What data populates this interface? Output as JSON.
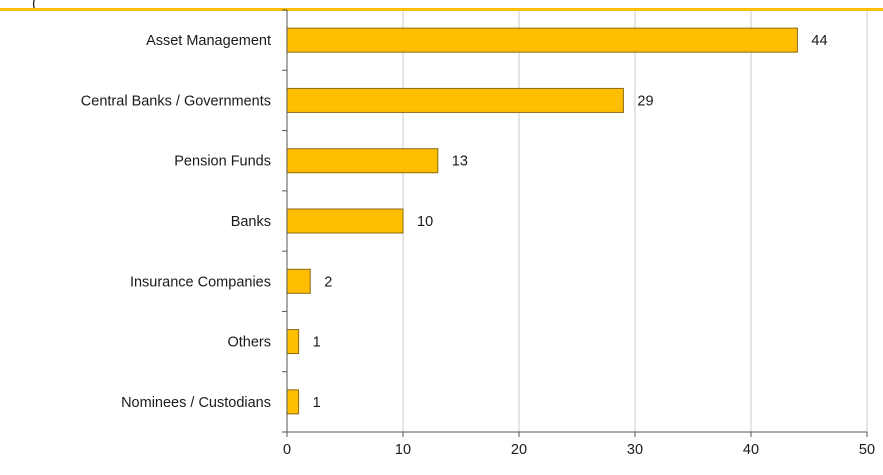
{
  "chart_data": {
    "type": "bar",
    "orientation": "horizontal",
    "title_fragment": "(",
    "categories": [
      "Asset Management",
      "Central Banks / Governments",
      "Pension Funds",
      "Banks",
      "Insurance Companies",
      "Others",
      "Nominees / Custodians"
    ],
    "values": [
      44,
      29,
      13,
      10,
      2,
      1,
      1
    ],
    "data_labels": [
      "44",
      "29",
      "13",
      "10",
      "2",
      "1",
      "1"
    ],
    "x_ticks": [
      "0",
      "10",
      "20",
      "30",
      "40",
      "50"
    ],
    "xlim": [
      0,
      50
    ],
    "grid": "vertical",
    "legend": "none",
    "colors": {
      "bar_fill": "#FFBE00",
      "bar_stroke": "#8A6A10",
      "top_rule": "#FFBE00",
      "grid": "#C8C8C8",
      "axis": "#555555"
    }
  }
}
